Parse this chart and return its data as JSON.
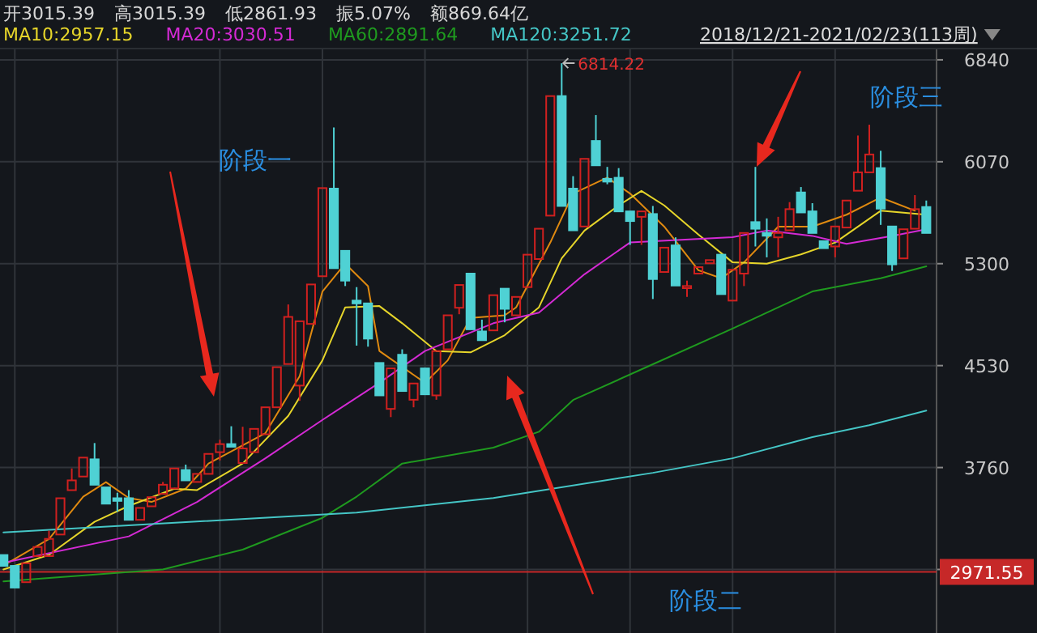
{
  "chart_data": {
    "type": "candlestick",
    "categories": [
      null,
      null,
      null,
      null,
      null,
      null,
      null,
      null,
      null,
      null,
      null,
      null,
      null,
      null,
      null,
      null,
      null,
      null,
      null,
      null,
      null,
      null,
      null,
      null,
      null,
      null,
      null,
      null,
      null,
      null,
      null,
      null,
      null,
      null,
      null,
      null,
      null,
      null,
      null,
      null,
      null,
      null,
      null,
      null,
      null,
      null,
      null,
      null,
      null,
      null,
      null,
      null,
      null,
      null,
      null,
      null,
      null,
      null,
      null,
      null,
      null,
      null,
      null,
      null,
      null,
      null,
      null,
      null,
      null,
      null,
      null,
      null,
      null,
      null,
      null,
      null,
      null,
      null,
      null,
      null,
      null,
      null
    ],
    "ohlc": [
      [
        3099,
        3099,
        3017,
        3017
      ],
      [
        3017,
        3017,
        2853,
        2853
      ],
      [
        2894,
        3037,
        2894,
        3037
      ],
      [
        3091,
        3160,
        3091,
        3160
      ],
      [
        3091,
        3283,
        3091,
        3221
      ],
      [
        3254,
        3528,
        3254,
        3528
      ],
      [
        3589,
        3753,
        3589,
        3663
      ],
      [
        3692,
        3835,
        3692,
        3835
      ],
      [
        3822,
        3945,
        3630,
        3630
      ],
      [
        3610,
        3610,
        3487,
        3487
      ],
      [
        3528,
        3569,
        3426,
        3508
      ],
      [
        3528,
        3589,
        3365,
        3365
      ],
      [
        3365,
        3455,
        3365,
        3455
      ],
      [
        3467,
        3536,
        3467,
        3536
      ],
      [
        3561,
        3651,
        3561,
        3630
      ],
      [
        3602,
        3753,
        3602,
        3753
      ],
      [
        3741,
        3782,
        3663,
        3663
      ],
      [
        3651,
        3712,
        3651,
        3712
      ],
      [
        3712,
        3863,
        3712,
        3863
      ],
      [
        3876,
        3970,
        3814,
        3937
      ],
      [
        3937,
        4072,
        3917,
        3917
      ],
      [
        3794,
        4068,
        3794,
        3904
      ],
      [
        3876,
        4052,
        3876,
        4052
      ],
      [
        4011,
        4215,
        4011,
        4215
      ],
      [
        4215,
        4518,
        4215,
        4518
      ],
      [
        4542,
        4992,
        4542,
        4898
      ],
      [
        4379,
        4865,
        4264,
        4865
      ],
      [
        4845,
        5143,
        4845,
        5143
      ],
      [
        5205,
        5871,
        5205,
        5871
      ],
      [
        5867,
        6329,
        5266,
        5266
      ],
      [
        5397,
        5397,
        5131,
        5172
      ],
      [
        5021,
        5123,
        4681,
        5000
      ],
      [
        5000,
        5000,
        4673,
        4734
      ],
      [
        4550,
        4550,
        4305,
        4305
      ],
      [
        4203,
        4509,
        4141,
        4509
      ],
      [
        4612,
        4653,
        4338,
        4338
      ],
      [
        4272,
        4395,
        4215,
        4395
      ],
      [
        4509,
        4509,
        4313,
        4313
      ],
      [
        4305,
        4640,
        4272,
        4640
      ],
      [
        4653,
        4910,
        4653,
        4910
      ],
      [
        4967,
        5139,
        4918,
        5139
      ],
      [
        5225,
        5225,
        4804,
        4804
      ],
      [
        4788,
        4877,
        4722,
        4722
      ],
      [
        4796,
        5062,
        4796,
        5062
      ],
      [
        5111,
        5111,
        4857,
        4959
      ],
      [
        4910,
        5049,
        4910,
        5049
      ],
      [
        5123,
        5368,
        5123,
        5368
      ],
      [
        5335,
        5564,
        5335,
        5564
      ],
      [
        5663,
        6566,
        5663,
        6566
      ],
      [
        6566,
        6814.22,
        5736,
        5736
      ],
      [
        5867,
        5961,
        5552,
        5552
      ],
      [
        5581,
        6092,
        5581,
        6092
      ],
      [
        6227,
        6423,
        6043,
        6043
      ],
      [
        5941,
        6031,
        5900,
        5920
      ],
      [
        5949,
        6022,
        5695,
        5695
      ],
      [
        5695,
        5695,
        5442,
        5622
      ],
      [
        5654,
        5695,
        5442,
        5695
      ],
      [
        5675,
        5736,
        5033,
        5184
      ],
      [
        5237,
        5421,
        5237,
        5421
      ],
      [
        5438,
        5499,
        5135,
        5135
      ],
      [
        5115,
        5172,
        5049,
        5131
      ],
      [
        5225,
        5274,
        5225,
        5274
      ],
      [
        5303,
        5327,
        5303,
        5327
      ],
      [
        5368,
        5368,
        5070,
        5070
      ],
      [
        5021,
        5254,
        5021,
        5254
      ],
      [
        5225,
        5532,
        5131,
        5532
      ],
      [
        5614,
        6031,
        5430,
        5564
      ],
      [
        5532,
        5642,
        5348,
        5511
      ],
      [
        5499,
        5654,
        5348,
        5532
      ],
      [
        5552,
        5765,
        5552,
        5712
      ],
      [
        5838,
        5879,
        5687,
        5687
      ],
      [
        5695,
        5757,
        5532,
        5532
      ],
      [
        5470,
        5470,
        5417,
        5417
      ],
      [
        5430,
        5581,
        5348,
        5581
      ],
      [
        5573,
        5777,
        5573,
        5777
      ],
      [
        5851,
        6268,
        5851,
        5990
      ],
      [
        5990,
        6350,
        5990,
        6125
      ],
      [
        6022,
        6153,
        5593,
        5716
      ],
      [
        5581,
        5581,
        5245,
        5295
      ],
      [
        5340,
        5560,
        5340,
        5560
      ],
      [
        5564,
        5818,
        5564,
        5712
      ],
      [
        5728,
        5777,
        5532,
        5532
      ]
    ],
    "series": [
      {
        "type": "line",
        "color": "#e08a10",
        "values": [
          3020,
          null,
          null,
          null,
          3220,
          null,
          null,
          3540,
          null,
          3650,
          null,
          3530,
          null,
          3500,
          null,
          null,
          3600,
          null,
          3790,
          null,
          null,
          null,
          null,
          4020,
          null,
          null,
          4450,
          null,
          5090,
          null,
          5300,
          null,
          5130,
          4640,
          null,
          null,
          null,
          4400,
          null,
          4570,
          null,
          4890,
          null,
          null,
          4910,
          4970,
          null,
          null,
          5460,
          null,
          5830,
          null,
          null,
          5950,
          null,
          5830,
          null,
          null,
          5580,
          null,
          null,
          5250,
          null,
          5190,
          null,
          5310,
          null,
          null,
          5580,
          null,
          null,
          5580,
          null,
          null,
          5670,
          null,
          null,
          5800,
          null,
          null,
          5700,
          null
        ]
      },
      {
        "name": "MA10:2957.15",
        "type": "line",
        "color": "#e6d52a",
        "values": [
          2990,
          null,
          null,
          null,
          3100,
          null,
          null,
          null,
          3350,
          null,
          null,
          3470,
          null,
          null,
          null,
          3600,
          null,
          3590,
          null,
          null,
          null,
          3790,
          null,
          null,
          null,
          4150,
          null,
          null,
          4570,
          null,
          4970,
          null,
          null,
          4980,
          null,
          4850,
          null,
          null,
          4640,
          null,
          null,
          4630,
          null,
          null,
          4760,
          null,
          null,
          4970,
          null,
          5340,
          null,
          5550,
          null,
          null,
          5740,
          null,
          5850,
          null,
          5740,
          null,
          null,
          5520,
          null,
          null,
          5310,
          null,
          null,
          5300,
          null,
          null,
          5370,
          null,
          null,
          5460,
          null,
          null,
          null,
          5700,
          null,
          null,
          null,
          5670
        ]
      },
      {
        "name": "MA20:3030.51",
        "type": "line",
        "color": "#d42ad4",
        "values": [
          3040,
          null,
          null,
          null,
          null,
          null,
          null,
          null,
          null,
          null,
          null,
          3240,
          null,
          null,
          null,
          null,
          null,
          3500,
          null,
          null,
          null,
          null,
          null,
          3830,
          null,
          null,
          null,
          null,
          4120,
          null,
          null,
          null,
          null,
          4400,
          null,
          null,
          null,
          4640,
          null,
          null,
          null,
          null,
          null,
          4850,
          null,
          null,
          null,
          4930,
          null,
          null,
          null,
          5220,
          null,
          null,
          null,
          5460,
          null,
          null,
          null,
          null,
          null,
          null,
          null,
          null,
          5500,
          null,
          null,
          5550,
          null,
          null,
          null,
          5510,
          null,
          null,
          5450,
          null,
          null,
          null,
          5510,
          null,
          null,
          5560
        ]
      },
      {
        "name": "MA60:2891.64",
        "type": "line",
        "color": "#1f9a1f",
        "values": [
          2900,
          null,
          null,
          null,
          null,
          null,
          null,
          null,
          null,
          null,
          null,
          null,
          null,
          null,
          2990,
          null,
          null,
          null,
          null,
          null,
          null,
          3140,
          null,
          null,
          null,
          null,
          null,
          null,
          3380,
          null,
          null,
          3540,
          null,
          null,
          null,
          3790,
          null,
          null,
          null,
          null,
          null,
          null,
          null,
          3910,
          null,
          null,
          null,
          4030,
          null,
          null,
          4270,
          null,
          null,
          null,
          null,
          null,
          null,
          4540,
          null,
          null,
          null,
          null,
          null,
          null,
          4810,
          null,
          null,
          null,
          null,
          null,
          null,
          5090,
          null,
          null,
          null,
          null,
          null,
          5190,
          null,
          null,
          null,
          5280
        ]
      },
      {
        "name": "MA120:3251.72",
        "type": "line",
        "color": "#45c6c6",
        "values": [
          3270,
          null,
          null,
          null,
          null,
          null,
          null,
          null,
          null,
          null,
          null,
          null,
          null,
          null,
          null,
          null,
          null,
          null,
          null,
          null,
          null,
          null,
          null,
          null,
          null,
          null,
          null,
          null,
          null,
          null,
          null,
          3420,
          null,
          null,
          null,
          null,
          null,
          null,
          null,
          null,
          null,
          null,
          null,
          3530,
          null,
          null,
          null,
          null,
          null,
          null,
          null,
          null,
          null,
          null,
          null,
          null,
          null,
          3720,
          null,
          null,
          null,
          null,
          null,
          null,
          3830,
          null,
          null,
          null,
          null,
          null,
          null,
          3990,
          null,
          null,
          null,
          null,
          4080,
          null,
          null,
          null,
          null,
          4190
        ]
      }
    ],
    "ylim": [
      2510,
      6925
    ],
    "yticks": [
      {
        "value": 2990,
        "label": null
      },
      3760,
      4530,
      5300,
      6070,
      6840
    ],
    "grid": true,
    "legend": "top left",
    "ref_lines": [
      {
        "axis": "y",
        "value": 2971.55,
        "label": "2971.55",
        "color": "#c62828"
      }
    ],
    "annotations": [
      "开3015.39",
      "高3015.39",
      "低2861.93",
      "振5.07%",
      "额869.64亿",
      "2018/12/21-2021/02/23(113周)",
      "阶段一",
      "阶段二",
      "阶段三",
      "6814.22"
    ]
  }
}
